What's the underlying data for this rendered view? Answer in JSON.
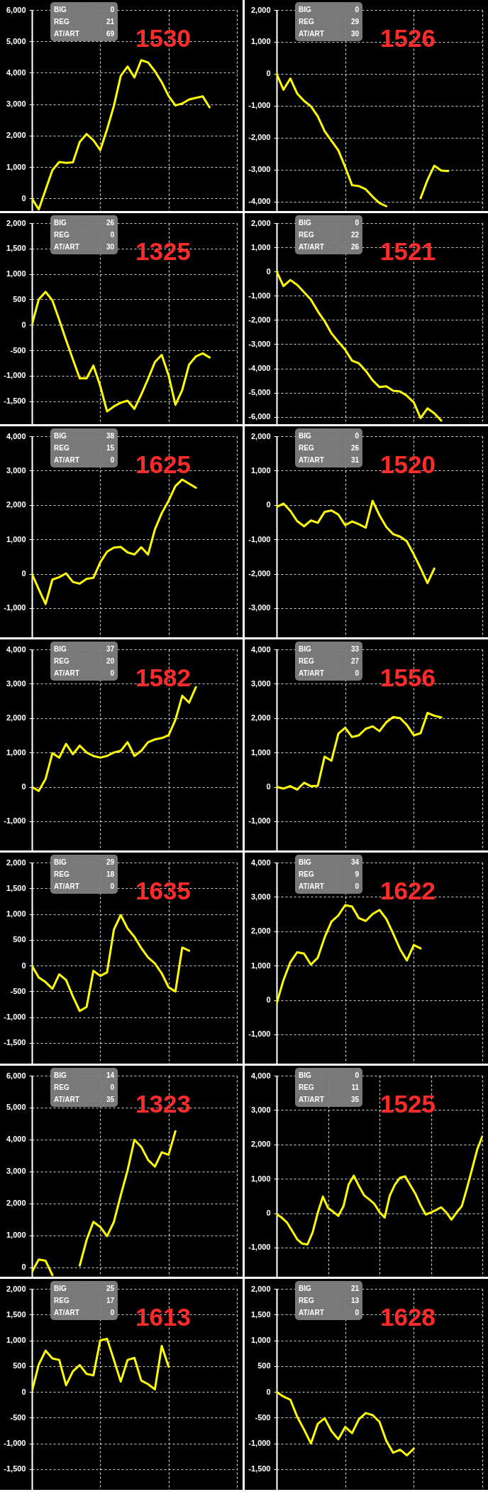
{
  "chart_data": [
    {
      "type": "line",
      "title": "1530",
      "annotations": [
        "BIG",
        "0",
        "REG",
        "21",
        "AT/ART",
        "69"
      ],
      "categories": [
        null,
        null,
        null,
        null,
        null,
        null,
        null,
        null,
        null,
        null,
        null,
        null,
        null,
        null,
        null,
        null,
        null,
        null,
        null,
        null,
        null,
        null,
        null,
        null,
        null,
        null,
        null,
        null,
        null,
        null,
        null
      ],
      "values": [
        0,
        -350,
        280,
        900,
        1160,
        1130,
        1150,
        1800,
        2050,
        1850,
        1540,
        2200,
        2950,
        3900,
        4200,
        3850,
        4400,
        4330,
        4050,
        3700,
        3260,
        2960,
        3020,
        3150,
        3200,
        3250,
        2900,
        null,
        null,
        null,
        null
      ],
      "color": "#ffff00",
      "ylim": [
        -400,
        6000
      ],
      "yticks": [
        0,
        {
          "value": 1000,
          "label": "1,000"
        },
        {
          "value": 2000,
          "label": "2,000"
        },
        {
          "value": 3000,
          "label": "3,000"
        },
        {
          "value": 4000,
          "label": "4,000"
        },
        {
          "value": 5000,
          "label": "5,000"
        },
        {
          "value": 6000,
          "label": "6,000"
        }
      ],
      "grid": true,
      "tick_labels": "y"
    },
    {
      "type": "line",
      "title": "1526",
      "annotations": [
        "BIG",
        "0",
        "REG",
        "29",
        "AT/ART",
        "30"
      ],
      "categories": [
        null,
        null,
        null,
        null,
        null,
        null,
        null,
        null,
        null,
        null,
        null,
        null,
        null,
        null,
        null,
        null,
        null,
        null,
        null,
        null,
        null,
        null,
        null,
        null,
        null,
        null,
        null,
        null,
        null,
        null,
        null
      ],
      "series": [
        {
          "color": "#ffff00",
          "values": [
            0,
            -500,
            -150,
            -620,
            -850,
            -1020,
            -1330,
            -1800,
            -2100,
            -2400,
            -2920,
            -3490,
            -3520,
            -3620,
            -3850,
            -4050,
            -4150,
            null,
            null,
            null,
            null,
            null,
            null,
            null,
            null,
            null,
            null,
            null,
            null,
            null,
            null
          ]
        },
        {
          "color": "#ffff00",
          "values": [
            null,
            null,
            null,
            null,
            null,
            null,
            null,
            null,
            null,
            null,
            null,
            null,
            null,
            null,
            null,
            null,
            null,
            null,
            null,
            null,
            null,
            -3900,
            -3330,
            -2880,
            -3030,
            -3050,
            null,
            null,
            null,
            null,
            null
          ]
        }
      ],
      "ylim": [
        -4300,
        2000
      ],
      "yticks": [
        {
          "value": -4000,
          "label": "-4,000"
        },
        {
          "value": -3000,
          "label": "-3,000"
        },
        {
          "value": -2000,
          "label": "-2,000"
        },
        {
          "value": -1000,
          "label": "-1,000"
        },
        0,
        {
          "value": 1000,
          "label": "1,000"
        },
        {
          "value": 2000,
          "label": "2,000"
        }
      ],
      "grid": true,
      "tick_labels": "y"
    },
    {
      "type": "line",
      "title": "1325",
      "annotations": [
        "BIG",
        "26",
        "REG",
        "0",
        "AT/ART",
        "30"
      ],
      "categories": [
        null,
        null,
        null,
        null,
        null,
        null,
        null,
        null,
        null,
        null,
        null,
        null,
        null,
        null,
        null,
        null,
        null,
        null,
        null,
        null,
        null,
        null,
        null,
        null,
        null,
        null,
        null,
        null,
        null,
        null,
        null
      ],
      "values": [
        0,
        500,
        650,
        480,
        100,
        -300,
        -680,
        -1050,
        -1050,
        -800,
        -1200,
        -1700,
        -1600,
        -1530,
        -1490,
        -1650,
        -1370,
        -1060,
        -730,
        -590,
        -990,
        -1570,
        -1280,
        -780,
        -620,
        -560,
        -640,
        null,
        null,
        null,
        null
      ],
      "color": "#ffff00",
      "ylim": [
        -1950,
        2000
      ],
      "yticks": [
        {
          "value": -1500,
          "label": "-1,500"
        },
        {
          "value": -1000,
          "label": "-1,000"
        },
        -500,
        0,
        500,
        {
          "value": 1000,
          "label": "1,000"
        },
        {
          "value": 1500,
          "label": "1,500"
        },
        {
          "value": 2000,
          "label": "2,000"
        }
      ],
      "grid": true,
      "tick_labels": "y"
    },
    {
      "type": "line",
      "title": "1521",
      "annotations": [
        "BIG",
        "0",
        "REG",
        "22",
        "AT/ART",
        "26"
      ],
      "categories": [
        null,
        null,
        null,
        null,
        null,
        null,
        null,
        null,
        null,
        null,
        null,
        null,
        null,
        null,
        null,
        null,
        null,
        null,
        null,
        null,
        null,
        null,
        null,
        null,
        null,
        null,
        null,
        null,
        null,
        null,
        null
      ],
      "values": [
        0,
        -600,
        -350,
        -550,
        -850,
        -1160,
        -1640,
        -2050,
        -2550,
        -2900,
        -3230,
        -3680,
        -3790,
        -4100,
        -4490,
        -4770,
        -4740,
        -4920,
        -4950,
        -5130,
        -5400,
        -6050,
        -5650,
        -5850,
        -6150,
        null,
        null,
        null,
        null,
        null,
        null
      ],
      "color": "#ffff00",
      "ylim": [
        -6300,
        2000
      ],
      "yticks": [
        {
          "value": -6000,
          "label": "-6,000"
        },
        {
          "value": -5000,
          "label": "-5,000"
        },
        {
          "value": -4000,
          "label": "-4,000"
        },
        {
          "value": -3000,
          "label": "-3,000"
        },
        {
          "value": -2000,
          "label": "-2,000"
        },
        {
          "value": -1000,
          "label": "-1,000"
        },
        0,
        {
          "value": 1000,
          "label": "1,000"
        },
        {
          "value": 2000,
          "label": "2,000"
        }
      ],
      "grid": true,
      "tick_labels": "y"
    },
    {
      "type": "line",
      "title": "1625",
      "annotations": [
        "BIG",
        "38",
        "REG",
        "15",
        "AT/ART",
        "0"
      ],
      "categories": [
        null,
        null,
        null,
        null,
        null,
        null,
        null,
        null,
        null,
        null,
        null,
        null,
        null,
        null,
        null,
        null,
        null,
        null,
        null,
        null,
        null,
        null,
        null,
        null,
        null,
        null,
        null,
        null,
        null,
        null,
        null
      ],
      "values": [
        0,
        -450,
        -880,
        -170,
        -100,
        10,
        -240,
        -290,
        -150,
        -120,
        330,
        640,
        760,
        780,
        620,
        560,
        770,
        560,
        1290,
        1760,
        2120,
        2550,
        2740,
        2620,
        2500,
        null,
        null,
        null,
        null,
        null,
        null
      ],
      "color": "#ffff00",
      "ylim": [
        -1850,
        4000
      ],
      "yticks": [
        {
          "value": -1000,
          "label": "-1,000"
        },
        0,
        {
          "value": 1000,
          "label": "1,000"
        },
        {
          "value": 2000,
          "label": "2,000"
        },
        {
          "value": 3000,
          "label": "3,000"
        },
        {
          "value": 4000,
          "label": "4,000"
        }
      ],
      "grid": true,
      "tick_labels": "y"
    },
    {
      "type": "line",
      "title": "1520",
      "annotations": [
        "BIG",
        "0",
        "REG",
        "26",
        "AT/ART",
        "31"
      ],
      "categories": [
        null,
        null,
        null,
        null,
        null,
        null,
        null,
        null,
        null,
        null,
        null,
        null,
        null,
        null,
        null,
        null,
        null,
        null,
        null,
        null,
        null,
        null,
        null,
        null,
        null,
        null,
        null,
        null,
        null,
        null,
        null
      ],
      "values": [
        -60,
        40,
        -170,
        -470,
        -620,
        -450,
        -520,
        -200,
        -160,
        -280,
        -590,
        -480,
        -560,
        -660,
        120,
        -300,
        -640,
        -850,
        -920,
        -1060,
        -1440,
        -1840,
        -2270,
        -1850,
        null,
        null,
        null,
        null,
        null,
        null,
        null
      ],
      "color": "#ffff00",
      "ylim": [
        -3850,
        2000
      ],
      "yticks": [
        {
          "value": -3000,
          "label": "-3,000"
        },
        {
          "value": -2000,
          "label": "-2,000"
        },
        {
          "value": -1000,
          "label": "-1,000"
        },
        0,
        {
          "value": 1000,
          "label": "1,000"
        },
        {
          "value": 2000,
          "label": "2,000"
        }
      ],
      "grid": true,
      "tick_labels": "y"
    },
    {
      "type": "line",
      "title": "1582",
      "annotations": [
        "BIG",
        "37",
        "REG",
        "20",
        "AT/ART",
        "0"
      ],
      "categories": [
        null,
        null,
        null,
        null,
        null,
        null,
        null,
        null,
        null,
        null,
        null,
        null,
        null,
        null,
        null,
        null,
        null,
        null,
        null,
        null,
        null,
        null,
        null,
        null,
        null,
        null,
        null,
        null,
        null,
        null,
        null
      ],
      "values": [
        0,
        -120,
        230,
        980,
        850,
        1250,
        950,
        1200,
        1000,
        900,
        850,
        900,
        1000,
        1050,
        1300,
        900,
        1050,
        1300,
        1380,
        1420,
        1500,
        1950,
        2650,
        2450,
        2900,
        null,
        null,
        null,
        null,
        null,
        null
      ],
      "color": "#ffff00",
      "ylim": [
        -1850,
        4000
      ],
      "yticks": [
        {
          "value": -1000,
          "label": "-1,000"
        },
        0,
        {
          "value": 1000,
          "label": "1,000"
        },
        {
          "value": 2000,
          "label": "2,000"
        },
        {
          "value": 3000,
          "label": "3,000"
        },
        {
          "value": 4000,
          "label": "4,000"
        }
      ],
      "grid": true,
      "tick_labels": "y"
    },
    {
      "type": "line",
      "title": "1556",
      "annotations": [
        "BIG",
        "33",
        "REG",
        "27",
        "AT/ART",
        "0"
      ],
      "categories": [
        null,
        null,
        null,
        null,
        null,
        null,
        null,
        null,
        null,
        null,
        null,
        null,
        null,
        null,
        null,
        null,
        null,
        null,
        null,
        null,
        null,
        null,
        null,
        null,
        null,
        null,
        null,
        null,
        null,
        null,
        null
      ],
      "values": [
        0,
        -50,
        20,
        -80,
        120,
        20,
        30,
        880,
        760,
        1550,
        1720,
        1450,
        1500,
        1690,
        1760,
        1620,
        1880,
        2030,
        2000,
        1800,
        1500,
        1560,
        2150,
        2070,
        2020,
        null,
        null,
        null,
        null,
        null,
        null
      ],
      "color": "#ffff00",
      "ylim": [
        -1850,
        4000
      ],
      "yticks": [
        {
          "value": -1000,
          "label": "-1,000"
        },
        0,
        {
          "value": 1000,
          "label": "1,000"
        },
        {
          "value": 2000,
          "label": "2,000"
        },
        {
          "value": 3000,
          "label": "3,000"
        },
        {
          "value": 4000,
          "label": "4,000"
        }
      ],
      "grid": true,
      "tick_labels": "y"
    },
    {
      "type": "line",
      "title": "1635",
      "annotations": [
        "BIG",
        "29",
        "REG",
        "18",
        "AT/ART",
        "0"
      ],
      "categories": [
        null,
        null,
        null,
        null,
        null,
        null,
        null,
        null,
        null,
        null,
        null,
        null,
        null,
        null,
        null,
        null,
        null,
        null,
        null,
        null,
        null,
        null,
        null,
        null,
        null,
        null,
        null,
        null,
        null,
        null,
        null
      ],
      "values": [
        0,
        -230,
        -320,
        -450,
        -170,
        -280,
        -600,
        -880,
        -800,
        -100,
        -200,
        -130,
        700,
        980,
        720,
        560,
        340,
        160,
        40,
        -150,
        -420,
        -500,
        350,
        290,
        null,
        null,
        null,
        null,
        null,
        null,
        null
      ],
      "color": "#ffff00",
      "ylim": [
        -1900,
        2000
      ],
      "yticks": [
        {
          "value": -1500,
          "label": "-1,500"
        },
        {
          "value": -1000,
          "label": "-1,000"
        },
        -500,
        0,
        500,
        {
          "value": 1000,
          "label": "1,000"
        },
        {
          "value": 1500,
          "label": "1,500"
        },
        {
          "value": 2000,
          "label": "2,000"
        }
      ],
      "grid": true,
      "tick_labels": "y"
    },
    {
      "type": "line",
      "title": "1622",
      "annotations": [
        "BIG",
        "34",
        "REG",
        "9",
        "AT/ART",
        "0"
      ],
      "categories": [
        null,
        null,
        null,
        null,
        null,
        null,
        null,
        null,
        null,
        null,
        null,
        null,
        null,
        null,
        null,
        null,
        null,
        null,
        null,
        null,
        null,
        null,
        null,
        null,
        null,
        null,
        null,
        null,
        null,
        null,
        null
      ],
      "values": [
        -100,
        580,
        1100,
        1390,
        1350,
        1030,
        1230,
        1820,
        2280,
        2460,
        2760,
        2720,
        2380,
        2300,
        2500,
        2620,
        2360,
        1930,
        1480,
        1150,
        1600,
        1500,
        null,
        null,
        null,
        null,
        null,
        null,
        null,
        null,
        null
      ],
      "color": "#ffff00",
      "ylim": [
        -1850,
        4000
      ],
      "yticks": [
        {
          "value": -1000,
          "label": "-1,000"
        },
        0,
        {
          "value": 1000,
          "label": "1,000"
        },
        {
          "value": 2000,
          "label": "2,000"
        },
        {
          "value": 3000,
          "label": "3,000"
        },
        {
          "value": 4000,
          "label": "4,000"
        }
      ],
      "grid": true,
      "tick_labels": "y"
    },
    {
      "type": "line",
      "title": "1323",
      "annotations": [
        "BIG",
        "14",
        "REG",
        "0",
        "AT/ART",
        "35"
      ],
      "categories": [
        null,
        null,
        null,
        null,
        null,
        null,
        null,
        null,
        null,
        null,
        null,
        null,
        null,
        null,
        null,
        null,
        null,
        null,
        null,
        null,
        null,
        null,
        null,
        null,
        null,
        null,
        null,
        null,
        null,
        null,
        null
      ],
      "values": [
        -150,
        240,
        200,
        -250,
        null,
        null,
        null,
        50,
        850,
        1420,
        1260,
        970,
        1420,
        2250,
        3030,
        3990,
        3770,
        3360,
        3150,
        3600,
        3520,
        4260,
        null,
        null,
        null,
        null,
        null,
        null,
        null,
        null,
        null
      ],
      "color": "#ffff00",
      "ylim": [
        -300,
        6000
      ],
      "yticks": [
        0,
        {
          "value": 1000,
          "label": "1,000"
        },
        {
          "value": 2000,
          "label": "2,000"
        },
        {
          "value": 3000,
          "label": "3,000"
        },
        {
          "value": 4000,
          "label": "4,000"
        },
        {
          "value": 5000,
          "label": "5,000"
        },
        {
          "value": 6000,
          "label": "6,000"
        }
      ],
      "grid": true,
      "tick_labels": "y"
    },
    {
      "type": "line",
      "title": "1525",
      "annotations": [
        "BIG",
        "0",
        "REG",
        "11",
        "AT/ART",
        "35"
      ],
      "categories": [
        null,
        null,
        null,
        null,
        null,
        null,
        null,
        null,
        null,
        null,
        null,
        null,
        null,
        null,
        null,
        null,
        null,
        null,
        null,
        null,
        null,
        null,
        null,
        null,
        null,
        null,
        null,
        null,
        null,
        null,
        null,
        null,
        null,
        null,
        null,
        null,
        null,
        null,
        null,
        null,
        null
      ],
      "values": [
        -30,
        -130,
        -270,
        -510,
        -760,
        -890,
        -910,
        -560,
        10,
        480,
        150,
        40,
        -80,
        200,
        830,
        1090,
        790,
        520,
        400,
        270,
        30,
        -130,
        510,
        830,
        1030,
        1070,
        810,
        560,
        230,
        -40,
        20,
        90,
        170,
        20,
        -190,
        20,
        200,
        720,
        1280,
        1850,
        2230
      ],
      "color": "#ffff00",
      "ylim": [
        -1850,
        4000
      ],
      "yticks": [
        {
          "value": -1000,
          "label": "-1,000"
        },
        0,
        {
          "value": 1000,
          "label": "1,000"
        },
        {
          "value": 2000,
          "label": "2,000"
        },
        {
          "value": 3000,
          "label": "3,000"
        },
        {
          "value": 4000,
          "label": "4,000"
        }
      ],
      "grid": true,
      "tick_labels": "y"
    },
    {
      "type": "line",
      "title": "1613",
      "annotations": [
        "BIG",
        "25",
        "REG",
        "17",
        "AT/ART",
        "0"
      ],
      "categories": [
        null,
        null,
        null,
        null,
        null,
        null,
        null,
        null,
        null,
        null,
        null,
        null,
        null,
        null,
        null,
        null,
        null,
        null,
        null,
        null,
        null,
        null,
        null,
        null,
        null,
        null,
        null,
        null,
        null,
        null,
        null
      ],
      "values": [
        10,
        530,
        800,
        650,
        620,
        130,
        400,
        520,
        350,
        320,
        1000,
        1030,
        620,
        200,
        620,
        660,
        220,
        150,
        50,
        890,
        490,
        null,
        null,
        null,
        null,
        null,
        null,
        null,
        null,
        null,
        null
      ],
      "color": "#ffff00",
      "ylim": [
        -1900,
        2000
      ],
      "yticks": [
        {
          "value": -1500,
          "label": "-1,500"
        },
        {
          "value": -1000,
          "label": "-1,000"
        },
        -500,
        0,
        500,
        {
          "value": 1000,
          "label": "1,000"
        },
        {
          "value": 1500,
          "label": "1,500"
        },
        {
          "value": 2000,
          "label": "2,000"
        }
      ],
      "grid": true,
      "tick_labels": "y"
    },
    {
      "type": "line",
      "title": "1628",
      "annotations": [
        "BIG",
        "21",
        "REG",
        "13",
        "AT/ART",
        "0"
      ],
      "categories": [
        null,
        null,
        null,
        null,
        null,
        null,
        null,
        null,
        null,
        null,
        null,
        null,
        null,
        null,
        null,
        null,
        null,
        null,
        null,
        null,
        null,
        null,
        null,
        null,
        null,
        null,
        null,
        null,
        null,
        null,
        null
      ],
      "values": [
        0,
        -90,
        -150,
        -480,
        -730,
        -1000,
        -620,
        -510,
        -760,
        -920,
        -680,
        -800,
        -530,
        -410,
        -450,
        -580,
        -950,
        -1180,
        -1120,
        -1230,
        -1100,
        null,
        null,
        null,
        null,
        null,
        null,
        null,
        null,
        null,
        null
      ],
      "color": "#ffff00",
      "ylim": [
        -1900,
        2000
      ],
      "yticks": [
        {
          "value": -1500,
          "label": "-1,500"
        },
        {
          "value": -1000,
          "label": "-1,000"
        },
        -500,
        0,
        500,
        {
          "value": 1000,
          "label": "1,000"
        },
        {
          "value": 1500,
          "label": "1,500"
        },
        {
          "value": 2000,
          "label": "2,000"
        }
      ],
      "grid": true,
      "tick_labels": "y"
    }
  ]
}
